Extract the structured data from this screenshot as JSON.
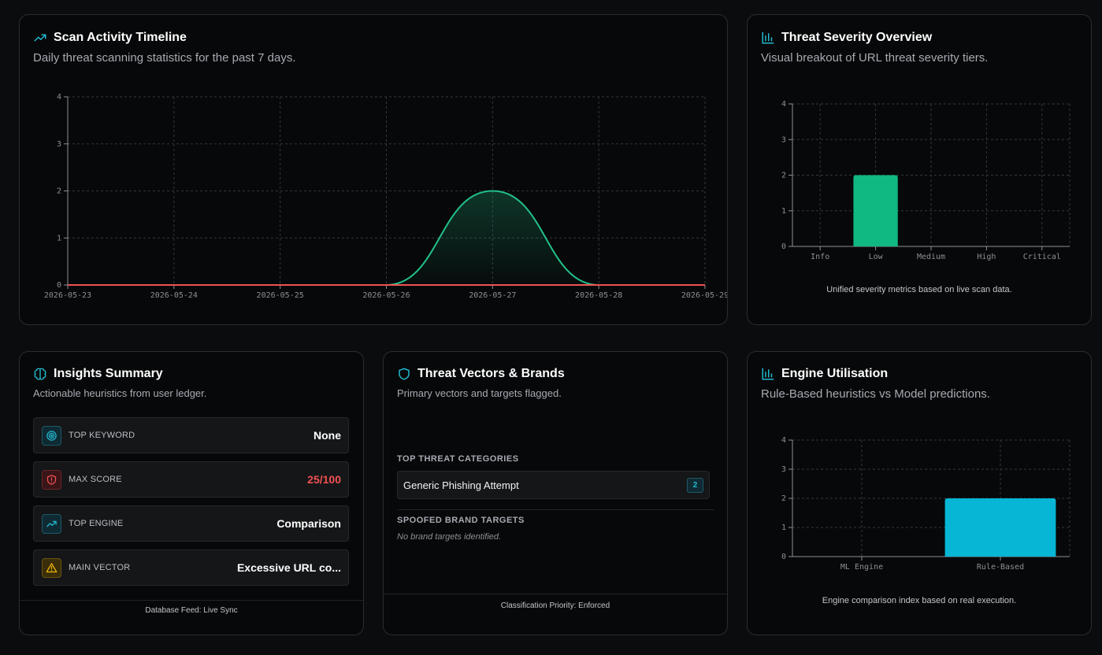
{
  "timeline": {
    "title": "Scan Activity Timeline",
    "subtitle": "Daily threat scanning statistics for the past 7 days.",
    "chart_data": {
      "type": "area",
      "x": [
        "2026-05-23",
        "2026-05-24",
        "2026-05-25",
        "2026-05-26",
        "2026-05-27",
        "2026-05-28",
        "2026-05-29"
      ],
      "yticks": [
        0,
        1,
        2,
        3,
        4
      ],
      "ylim": [
        0,
        4
      ],
      "grid": true,
      "series": [
        {
          "values": [
            0,
            0,
            0,
            0,
            2,
            0,
            0
          ],
          "color": "#22c08a"
        },
        {
          "values": [
            0,
            0,
            0,
            0,
            0,
            0,
            0
          ],
          "color": "#f05252"
        }
      ]
    }
  },
  "severity": {
    "title": "Threat Severity Overview",
    "subtitle": "Visual breakout of URL threat severity tiers.",
    "caption": "Unified severity metrics based on live scan data.",
    "chart_data": {
      "type": "bar",
      "categories": [
        "Info",
        "Low",
        "Medium",
        "High",
        "Critical"
      ],
      "values": [
        0,
        2,
        0,
        0,
        0
      ],
      "yticks": [
        0,
        1,
        2,
        3,
        4
      ],
      "ylim": [
        0,
        4
      ],
      "grid": true,
      "color": "#10b981"
    }
  },
  "insights": {
    "title": "Insights Summary",
    "subtitle": "Actionable heuristics from user ledger.",
    "rows": [
      {
        "label": "TOP KEYWORD",
        "value": "None",
        "icon": "target-icon"
      },
      {
        "label": "MAX SCORE",
        "value": "25/100",
        "icon": "shield-alert-icon"
      },
      {
        "label": "TOP ENGINE",
        "value": "Comparison",
        "icon": "trending-up-icon"
      },
      {
        "label": "MAIN VECTOR",
        "value": "Excessive URL co...",
        "icon": "warning-icon"
      }
    ],
    "footer": "Database Feed: Live Sync"
  },
  "vectors": {
    "title": "Threat Vectors & Brands",
    "subtitle": "Primary vectors and targets flagged.",
    "categories_label": "TOP THREAT CATEGORIES",
    "categories": [
      {
        "name": "Generic Phishing Attempt",
        "count": "2"
      }
    ],
    "brands_label": "SPOOFED BRAND TARGETS",
    "brands_empty": "No brand targets identified.",
    "footer": "Classification Priority: Enforced"
  },
  "engine": {
    "title": "Engine Utilisation",
    "subtitle": "Rule-Based heuristics vs Model predictions.",
    "caption": "Engine comparison index based on real execution.",
    "chart_data": {
      "type": "bar",
      "categories": [
        "ML Engine",
        "Rule-Based"
      ],
      "values": [
        0,
        2
      ],
      "yticks": [
        0,
        1,
        2,
        3,
        4
      ],
      "ylim": [
        0,
        4
      ],
      "grid": true,
      "color": "#06b6d4"
    }
  },
  "colors": {
    "accent_cyan": "#22b8cf",
    "danger": "#f05252",
    "warning": "#eab308",
    "success": "#10b981"
  }
}
